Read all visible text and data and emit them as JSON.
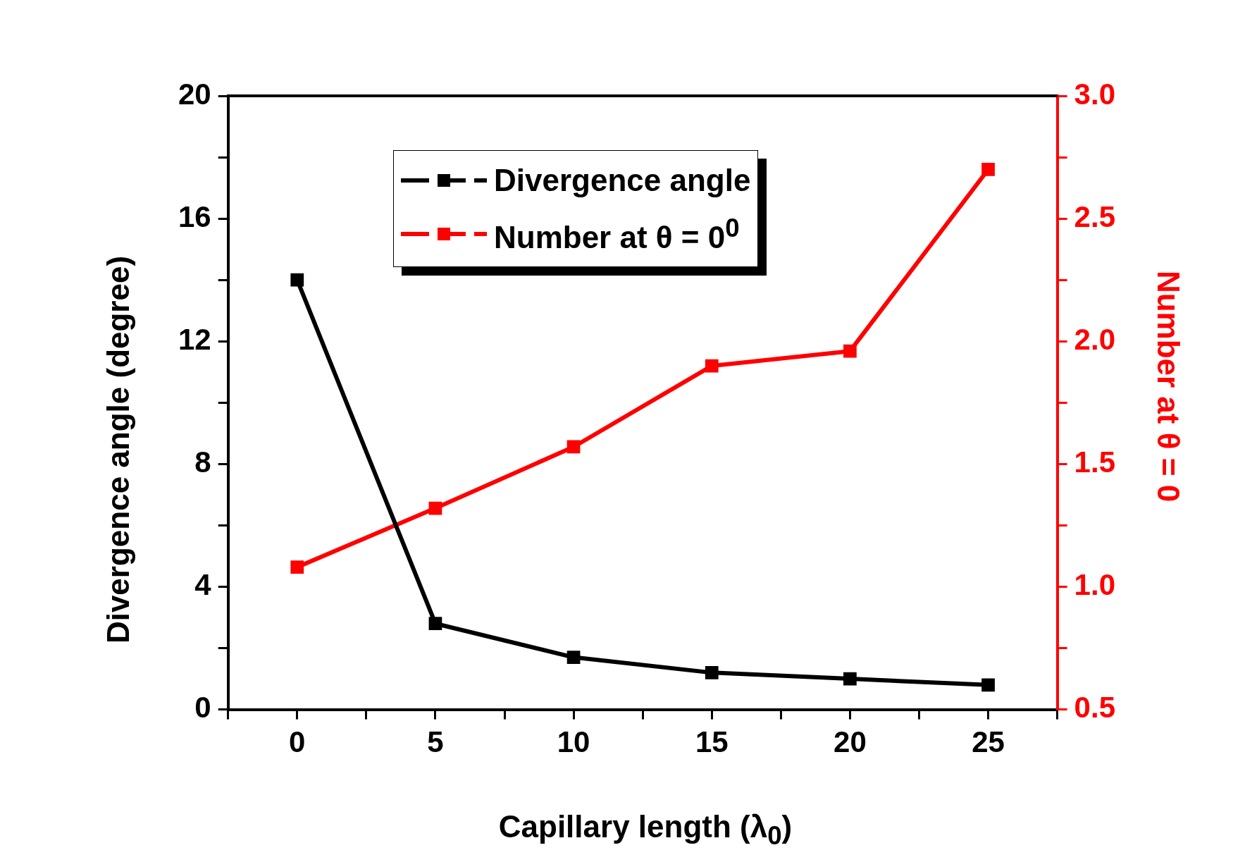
{
  "chart_data": {
    "type": "line",
    "xlabel": "Capillary length (λ$_{0}$)",
    "ylabel": "Divergence angle (degree)",
    "y2label": "Number at θ = 0",
    "x": [
      0,
      5,
      10,
      15,
      20,
      25
    ],
    "series": [
      {
        "name": "Divergence angle",
        "color": "#000000",
        "values": [
          14.0,
          2.8,
          1.7,
          1.2,
          1.0,
          0.8
        ]
      },
      {
        "name": "Number at θ = 0$^{0}$",
        "color": "#ff0000",
        "axis": "y2",
        "values": [
          1.08,
          1.32,
          1.57,
          1.9,
          1.96,
          2.7
        ]
      }
    ],
    "xlim": [
      -2.5,
      27.5
    ],
    "xticks": [
      {
        "value": -2.5,
        "label": null
      },
      0,
      {
        "value": 2.5,
        "label": null
      },
      5,
      {
        "value": 7.5,
        "label": null
      },
      10,
      {
        "value": 12.5,
        "label": null
      },
      15,
      {
        "value": 17.5,
        "label": null
      },
      20,
      {
        "value": 22.5,
        "label": null
      },
      25,
      {
        "value": 27.5,
        "label": null
      }
    ],
    "ylim": [
      0,
      20
    ],
    "yticks": [
      0,
      {
        "value": 2,
        "label": null
      },
      4,
      {
        "value": 6,
        "label": null
      },
      8,
      {
        "value": 10,
        "label": null
      },
      12,
      {
        "value": 14,
        "label": null
      },
      16,
      {
        "value": 18,
        "label": null
      },
      20
    ],
    "y2lim": [
      0.5,
      3.0
    ],
    "y2ticks": [
      {
        "value": 0.5,
        "label": "0.5"
      },
      {
        "value": 0.75,
        "label": null
      },
      {
        "value": 1.0,
        "label": "1.0"
      },
      {
        "value": 1.25,
        "label": null
      },
      {
        "value": 1.5,
        "label": "1.5"
      },
      {
        "value": 1.75,
        "label": null
      },
      {
        "value": 2.0,
        "label": "2.0"
      },
      {
        "value": 2.25,
        "label": null
      },
      {
        "value": 2.5,
        "label": "2.5"
      },
      {
        "value": 2.75,
        "label": null
      },
      {
        "value": 3.0,
        "label": "3.0"
      }
    ],
    "legend": "top",
    "marker": "square",
    "line_style": "solid",
    "grid": false
  }
}
